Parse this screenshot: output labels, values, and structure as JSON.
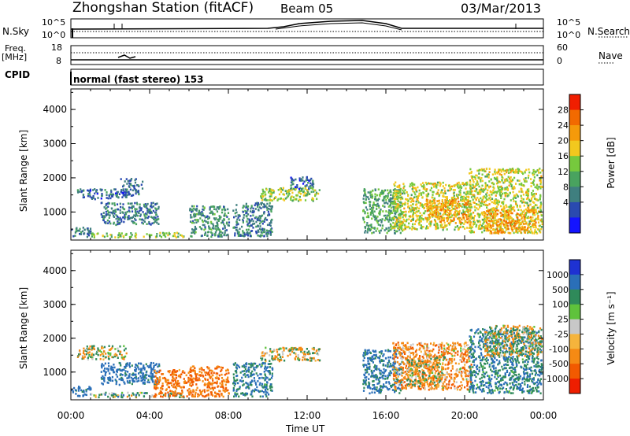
{
  "header": {
    "station": "Zhongshan Station (fitACF)",
    "beam": "Beam 05",
    "date": "03/Mar/2013"
  },
  "panels": {
    "nsky": {
      "label": "N.Sky",
      "tick_top": "10^5",
      "tick_bottom": "10^0",
      "right_label": "N.Search"
    },
    "freq": {
      "label": "Freq.",
      "unit": "[MHz]",
      "tick_top": "18",
      "tick_bottom": "8",
      "right_tick_top": "60",
      "right_tick_bottom": "0",
      "right_label": "Nave"
    },
    "cpid": {
      "label": "CPID",
      "text": "normal (fast stereo) 153"
    }
  },
  "chart_data": [
    {
      "type": "heatmap",
      "panel": "power",
      "ylabel": "Slant Range [km]",
      "ylim": [
        180,
        4600
      ],
      "yticks": [
        "1000",
        "2000",
        "3000",
        "4000"
      ],
      "colorbar_label": "Power [dB]",
      "colorbar_ticks": [
        "4",
        "8",
        "12",
        "16",
        "20",
        "24",
        "28"
      ],
      "colorbar_colors": [
        "#1414ff",
        "#2a4ab0",
        "#3f7f7f",
        "#49a35f",
        "#76c93d",
        "#f2c81e",
        "#f59a0a",
        "#f26a00",
        "#f01e00"
      ],
      "echo_regions": [
        {
          "t": [
            0.0,
            1.0
          ],
          "r": [
            300,
            600
          ],
          "power": 10
        },
        {
          "t": [
            0.3,
            2.8
          ],
          "r": [
            1400,
            1700
          ],
          "power": 8
        },
        {
          "t": [
            1.0,
            5.7
          ],
          "r": [
            280,
            420
          ],
          "power": 18
        },
        {
          "t": [
            1.5,
            4.5
          ],
          "r": [
            650,
            1300
          ],
          "power": 10
        },
        {
          "t": [
            2.5,
            3.6
          ],
          "r": [
            1500,
            2000
          ],
          "power": 8
        },
        {
          "t": [
            6.0,
            8.0
          ],
          "r": [
            300,
            1200
          ],
          "power": 12
        },
        {
          "t": [
            8.2,
            10.2
          ],
          "r": [
            300,
            1300
          ],
          "power": 10
        },
        {
          "t": [
            9.6,
            12.6
          ],
          "r": [
            1350,
            1750
          ],
          "power": 18
        },
        {
          "t": [
            11.0,
            12.3
          ],
          "r": [
            1700,
            2050
          ],
          "power": 8
        },
        {
          "t": [
            14.8,
            16.8
          ],
          "r": [
            400,
            1700
          ],
          "power": 14
        },
        {
          "t": [
            16.3,
            20.3
          ],
          "r": [
            500,
            1900
          ],
          "power": 20
        },
        {
          "t": [
            18.0,
            20.2
          ],
          "r": [
            700,
            1400
          ],
          "power": 26
        },
        {
          "t": [
            20.2,
            23.9
          ],
          "r": [
            400,
            2300
          ],
          "power": 20
        },
        {
          "t": [
            21.0,
            23.7
          ],
          "r": [
            400,
            1100
          ],
          "power": 26
        }
      ]
    },
    {
      "type": "heatmap",
      "panel": "velocity",
      "xlabel": "Time UT",
      "xticks": [
        "00:00",
        "04:00",
        "08:00",
        "12:00",
        "16:00",
        "20:00",
        "00:00"
      ],
      "xlim": [
        0,
        24
      ],
      "ylabel": "Slant Range [km]",
      "ylim": [
        180,
        4600
      ],
      "yticks": [
        "1000",
        "2000",
        "3000",
        "4000"
      ],
      "colorbar_label": "Velocity [m s⁻¹]",
      "colorbar_ticks": [
        "1000",
        "500",
        "100",
        "25",
        "-25",
        "-100",
        "-500",
        "-1000"
      ],
      "colorbar_colors": [
        "#1e32d2",
        "#2a6fb8",
        "#2f8a5a",
        "#5fc23c",
        "#c8c8c8",
        "#f5b43c",
        "#f58a14",
        "#f25a00",
        "#ee1e00"
      ],
      "echo_regions": [
        {
          "t": [
            0.0,
            1.0
          ],
          "r": [
            300,
            600
          ],
          "velocity": 500
        },
        {
          "t": [
            0.3,
            2.8
          ],
          "r": [
            1400,
            1800
          ],
          "velocity": 0
        },
        {
          "t": [
            1.0,
            5.7
          ],
          "r": [
            280,
            420
          ],
          "velocity": 100
        },
        {
          "t": [
            1.5,
            4.5
          ],
          "r": [
            650,
            1300
          ],
          "velocity": 500
        },
        {
          "t": [
            4.2,
            6.2
          ],
          "r": [
            300,
            1100
          ],
          "velocity": -300
        },
        {
          "t": [
            6.0,
            8.0
          ],
          "r": [
            300,
            1200
          ],
          "velocity": -300
        },
        {
          "t": [
            8.2,
            10.2
          ],
          "r": [
            300,
            1300
          ],
          "velocity": 300
        },
        {
          "t": [
            9.6,
            12.6
          ],
          "r": [
            1350,
            1750
          ],
          "velocity": 0
        },
        {
          "t": [
            14.8,
            16.8
          ],
          "r": [
            400,
            1700
          ],
          "velocity": 400
        },
        {
          "t": [
            16.3,
            20.3
          ],
          "r": [
            500,
            1900
          ],
          "velocity": -200
        },
        {
          "t": [
            17.0,
            19.0
          ],
          "r": [
            600,
            1500
          ],
          "velocity": 0
        },
        {
          "t": [
            20.2,
            23.9
          ],
          "r": [
            400,
            2300
          ],
          "velocity": 300
        },
        {
          "t": [
            21.0,
            23.9
          ],
          "r": [
            1500,
            2400
          ],
          "velocity": 0
        }
      ]
    }
  ]
}
